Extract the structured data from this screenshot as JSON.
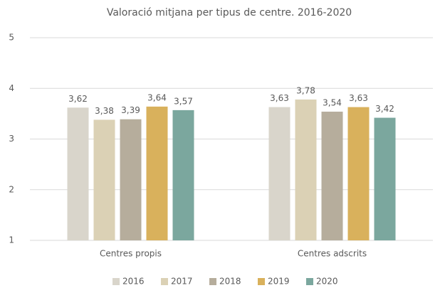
{
  "chart_data": {
    "type": "bar",
    "title": "Valoració mitjana per tipus de centre. 2016-2020",
    "categories": [
      "Centres propis",
      "Centres adscrits"
    ],
    "series": [
      {
        "name": "2016",
        "color": "#d9d5cb",
        "values": [
          3.62,
          3.63
        ],
        "value_labels": [
          "3,62",
          "3,63"
        ]
      },
      {
        "name": "2017",
        "color": "#dbd1b5",
        "values": [
          3.38,
          3.78
        ],
        "value_labels": [
          "3,38",
          "3,78"
        ]
      },
      {
        "name": "2018",
        "color": "#b6ad9c",
        "values": [
          3.39,
          3.54
        ],
        "value_labels": [
          "3,39",
          "3,54"
        ]
      },
      {
        "name": "2019",
        "color": "#d9b15c",
        "values": [
          3.64,
          3.63
        ],
        "value_labels": [
          "3,64",
          "3,63"
        ]
      },
      {
        "name": "2020",
        "color": "#7ba79e",
        "values": [
          3.57,
          3.42
        ],
        "value_labels": [
          "3,57",
          "3,42"
        ]
      }
    ],
    "ylim": [
      1,
      5
    ],
    "yticks": [
      1,
      2,
      3,
      4,
      5
    ],
    "grid": true,
    "legend": "bottom"
  }
}
